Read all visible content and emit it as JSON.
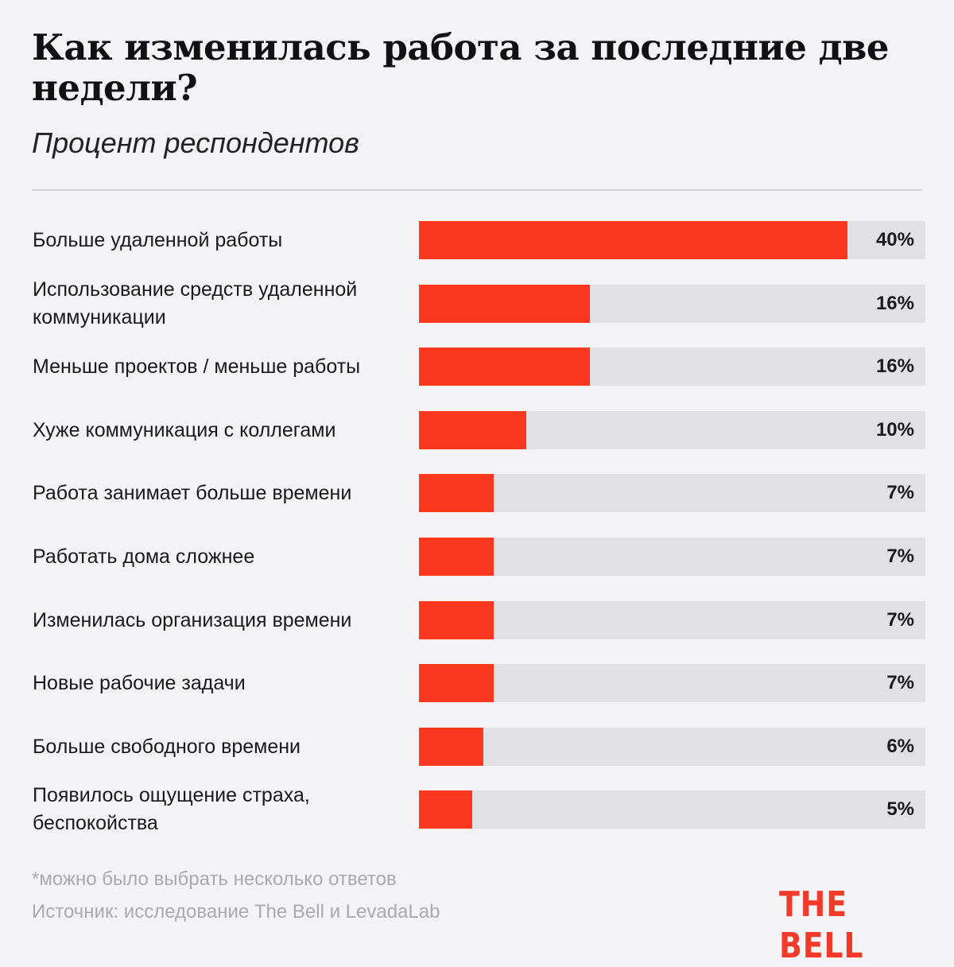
{
  "header": {
    "title": "Как изменилась работа за последние две недели?",
    "subtitle": "Процент респондентов"
  },
  "chart_data": {
    "type": "bar",
    "orientation": "horizontal",
    "title": "Как изменилась работа за последние две недели?",
    "subtitle": "Процент респондентов",
    "categories": [
      "Больше удаленной работы",
      "Использование средств удаленной коммуникации",
      "Меньше проектов / меньше работы",
      "Хуже коммуникация с коллегами",
      "Работа занимает больше времени",
      "Работать дома сложнее",
      "Изменилась организация времени",
      "Новые рабочие задачи",
      "Больше свободного времени",
      "Появилось ощущение страха, беспокойства"
    ],
    "values": [
      40,
      16,
      16,
      10,
      7,
      7,
      7,
      7,
      6,
      5
    ],
    "value_labels": [
      "40%",
      "16%",
      "16%",
      "10%",
      "7%",
      "7%",
      "7%",
      "7%",
      "6%",
      "5%"
    ],
    "xlim": [
      0,
      47.3
    ],
    "unit": "%",
    "colors": {
      "bar": "#fc3720",
      "track": "#e1e1e4"
    }
  },
  "footer": {
    "footnote": "*можно было выбрать несколько ответов",
    "source": "Источник: исследование The Bell и LevadaLab",
    "logo": "THE BELL"
  },
  "colors": {
    "background": "#f3f3f5",
    "accent": "#fc3720",
    "logo": "#f23a2a",
    "muted_text": "#a9a9ae"
  }
}
